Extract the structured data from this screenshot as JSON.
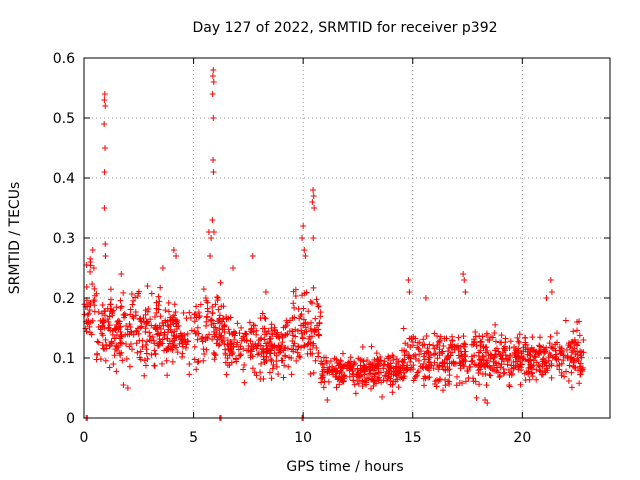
{
  "chart_data": {
    "type": "scatter",
    "title": "Day 127 of 2022, SRMTID for receiver p392",
    "xlabel": "GPS time / hours",
    "ylabel": "SRMTID / TECUs",
    "xlim": [
      0,
      24
    ],
    "ylim": [
      0,
      0.6
    ],
    "x_ticks": [
      0,
      5,
      10,
      15,
      20
    ],
    "x_tick_labels": [
      "0",
      "5",
      "10",
      "15",
      "20"
    ],
    "y_ticks": [
      0,
      0.1,
      0.2,
      0.3,
      0.4,
      0.5,
      0.6
    ],
    "y_tick_labels": [
      "0",
      "0.1",
      "0.2",
      "0.3",
      "0.4",
      "0.5",
      "0.6"
    ],
    "grid": true,
    "marker": "+",
    "marker_color": "#ff0000",
    "series": [
      {
        "name": "SRMTID p392",
        "segments": [
          {
            "start": 0.0,
            "end": 0.5,
            "mean": 0.19,
            "spread": 0.05
          },
          {
            "start": 0.5,
            "end": 2.5,
            "mean": 0.15,
            "spread": 0.045
          },
          {
            "start": 2.5,
            "end": 5.0,
            "mean": 0.14,
            "spread": 0.045
          },
          {
            "start": 5.0,
            "end": 6.5,
            "mean": 0.15,
            "spread": 0.05
          },
          {
            "start": 6.5,
            "end": 9.5,
            "mean": 0.12,
            "spread": 0.04
          },
          {
            "start": 9.5,
            "end": 10.8,
            "mean": 0.15,
            "spread": 0.05
          },
          {
            "start": 10.8,
            "end": 14.5,
            "mean": 0.08,
            "spread": 0.025
          },
          {
            "start": 14.5,
            "end": 22.8,
            "mean": 0.1,
            "spread": 0.035
          }
        ],
        "spikes": [
          {
            "x": 0.95,
            "y": 0.54
          },
          {
            "x": 0.93,
            "y": 0.53
          },
          {
            "x": 0.97,
            "y": 0.52
          },
          {
            "x": 0.92,
            "y": 0.49
          },
          {
            "x": 0.96,
            "y": 0.45
          },
          {
            "x": 0.94,
            "y": 0.41
          },
          {
            "x": 0.93,
            "y": 0.35
          },
          {
            "x": 0.97,
            "y": 0.29
          },
          {
            "x": 0.98,
            "y": 0.27
          },
          {
            "x": 5.9,
            "y": 0.58
          },
          {
            "x": 5.88,
            "y": 0.57
          },
          {
            "x": 5.92,
            "y": 0.56
          },
          {
            "x": 5.87,
            "y": 0.54
          },
          {
            "x": 5.9,
            "y": 0.5
          },
          {
            "x": 5.89,
            "y": 0.43
          },
          {
            "x": 5.91,
            "y": 0.41
          },
          {
            "x": 5.86,
            "y": 0.33
          },
          {
            "x": 5.93,
            "y": 0.31
          },
          {
            "x": 5.8,
            "y": 0.3
          },
          {
            "x": 5.7,
            "y": 0.31
          },
          {
            "x": 5.75,
            "y": 0.27
          },
          {
            "x": 10.45,
            "y": 0.38
          },
          {
            "x": 10.48,
            "y": 0.37
          },
          {
            "x": 10.42,
            "y": 0.36
          },
          {
            "x": 10.5,
            "y": 0.35
          },
          {
            "x": 10.46,
            "y": 0.3
          },
          {
            "x": 10.0,
            "y": 0.32
          },
          {
            "x": 9.95,
            "y": 0.3
          },
          {
            "x": 10.05,
            "y": 0.28
          },
          {
            "x": 10.1,
            "y": 0.27
          },
          {
            "x": 0.4,
            "y": 0.28
          },
          {
            "x": 0.3,
            "y": 0.26
          },
          {
            "x": 0.45,
            "y": 0.25
          },
          {
            "x": 4.1,
            "y": 0.28
          },
          {
            "x": 4.2,
            "y": 0.27
          },
          {
            "x": 1.7,
            "y": 0.24
          },
          {
            "x": 2.9,
            "y": 0.22
          },
          {
            "x": 3.6,
            "y": 0.25
          },
          {
            "x": 6.8,
            "y": 0.25
          },
          {
            "x": 7.7,
            "y": 0.27
          },
          {
            "x": 8.3,
            "y": 0.21
          },
          {
            "x": 14.8,
            "y": 0.23
          },
          {
            "x": 14.85,
            "y": 0.21
          },
          {
            "x": 15.6,
            "y": 0.2
          },
          {
            "x": 17.3,
            "y": 0.24
          },
          {
            "x": 17.35,
            "y": 0.23
          },
          {
            "x": 17.4,
            "y": 0.21
          },
          {
            "x": 21.1,
            "y": 0.2
          },
          {
            "x": 21.3,
            "y": 0.23
          },
          {
            "x": 21.35,
            "y": 0.21
          },
          {
            "x": 22.5,
            "y": 0.16
          },
          {
            "x": 0.1,
            "y": 0.0
          },
          {
            "x": 0.15,
            "y": 0.0
          },
          {
            "x": 6.2,
            "y": 0.0
          },
          {
            "x": 6.25,
            "y": 0.0
          },
          {
            "x": 9.95,
            "y": 0.0
          },
          {
            "x": 10.0,
            "y": 0.0
          },
          {
            "x": 18.3,
            "y": 0.03
          },
          {
            "x": 18.4,
            "y": 0.025
          },
          {
            "x": 11.1,
            "y": 0.03
          },
          {
            "x": 13.6,
            "y": 0.035
          },
          {
            "x": 1.8,
            "y": 0.055
          },
          {
            "x": 2.0,
            "y": 0.05
          }
        ]
      }
    ]
  }
}
